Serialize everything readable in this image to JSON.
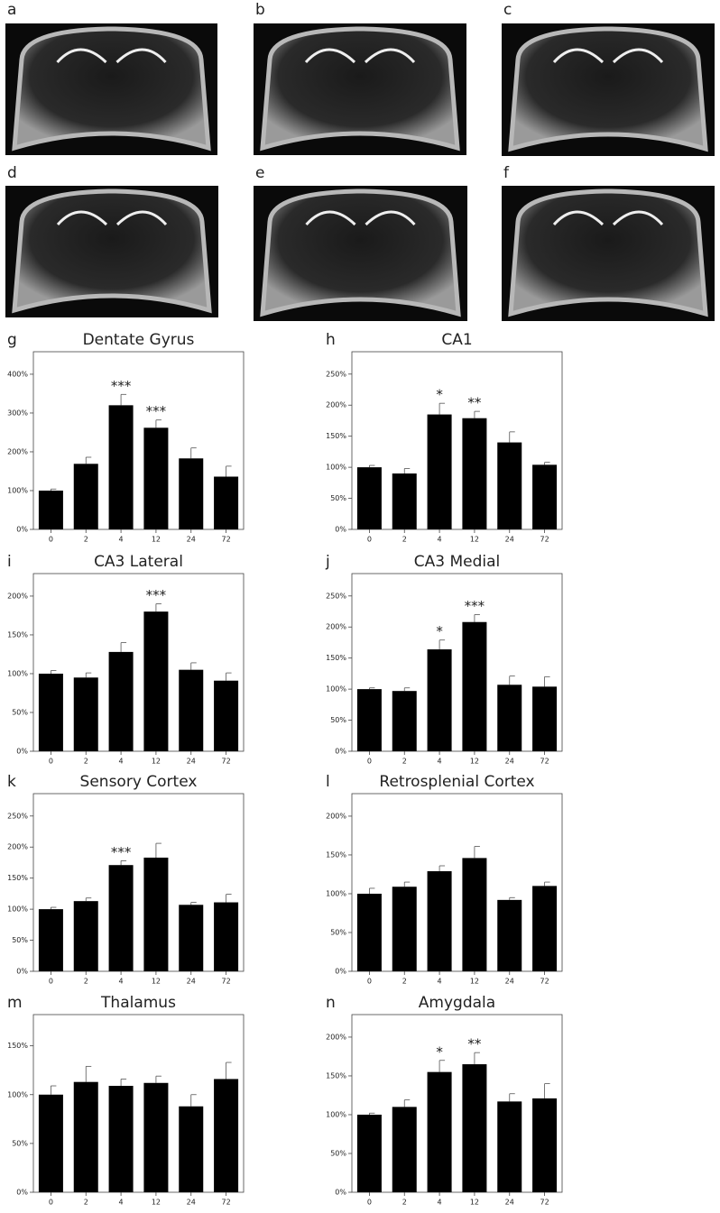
{
  "panels": [
    {
      "label": "a"
    },
    {
      "label": "b"
    },
    {
      "label": "c"
    },
    {
      "label": "d"
    },
    {
      "label": "e"
    },
    {
      "label": "f"
    }
  ],
  "chart_data": [
    {
      "type": "bar",
      "label": "g",
      "title": "Dentate Gyrus",
      "categories": [
        "0",
        "2",
        "4",
        "12",
        "24",
        "72"
      ],
      "values": [
        100,
        169,
        320,
        262,
        183,
        136
      ],
      "errors": [
        4,
        17,
        28,
        20,
        27,
        27
      ],
      "annotations": [
        null,
        null,
        "***",
        "***",
        null,
        null
      ],
      "color": "#000000",
      "ylim": [
        0,
        458
      ],
      "yticks": [
        {
          "value": 0,
          "label": "0%"
        },
        {
          "value": 100,
          "label": "100%"
        },
        {
          "value": 200,
          "label": "200%"
        },
        {
          "value": 300,
          "label": "300%"
        },
        {
          "value": 400,
          "label": "400%"
        }
      ]
    },
    {
      "type": "bar",
      "label": "h",
      "title": "CA1",
      "categories": [
        "0",
        "2",
        "4",
        "12",
        "24",
        "72"
      ],
      "values": [
        100,
        90,
        185,
        179,
        140,
        104
      ],
      "errors": [
        3,
        8,
        18,
        11,
        17,
        4
      ],
      "annotations": [
        null,
        null,
        "*",
        "**",
        null,
        null
      ],
      "color": "#000000",
      "ylim": [
        0,
        286
      ],
      "yticks": [
        {
          "value": 0,
          "label": "0%"
        },
        {
          "value": 50,
          "label": "50%"
        },
        {
          "value": 100,
          "label": "100%"
        },
        {
          "value": 150,
          "label": "150%"
        },
        {
          "value": 200,
          "label": "200%"
        },
        {
          "value": 250,
          "label": "250%"
        }
      ]
    },
    {
      "type": "bar",
      "label": "i",
      "title": "CA3 Lateral",
      "categories": [
        "0",
        "2",
        "4",
        "12",
        "24",
        "72"
      ],
      "values": [
        100,
        95,
        128,
        180,
        105,
        91
      ],
      "errors": [
        4,
        6,
        12,
        10,
        9,
        10
      ],
      "annotations": [
        null,
        null,
        null,
        "***",
        null,
        null
      ],
      "color": "#000000",
      "ylim": [
        0,
        229
      ],
      "yticks": [
        {
          "value": 0,
          "label": "0%"
        },
        {
          "value": 50,
          "label": "50%"
        },
        {
          "value": 100,
          "label": "100%"
        },
        {
          "value": 150,
          "label": "150%"
        },
        {
          "value": 200,
          "label": "200%"
        }
      ]
    },
    {
      "type": "bar",
      "label": "j",
      "title": "CA3 Medial",
      "categories": [
        "0",
        "2",
        "4",
        "12",
        "24",
        "72"
      ],
      "values": [
        100,
        97,
        164,
        208,
        107,
        104
      ],
      "errors": [
        2,
        5,
        15,
        12,
        14,
        16
      ],
      "annotations": [
        null,
        null,
        "*",
        "***",
        null,
        null
      ],
      "color": "#000000",
      "ylim": [
        0,
        286
      ],
      "yticks": [
        {
          "value": 0,
          "label": "0%"
        },
        {
          "value": 50,
          "label": "50%"
        },
        {
          "value": 100,
          "label": "100%"
        },
        {
          "value": 150,
          "label": "150%"
        },
        {
          "value": 200,
          "label": "200%"
        },
        {
          "value": 250,
          "label": "250%"
        }
      ]
    },
    {
      "type": "bar",
      "label": "k",
      "title": "Sensory Cortex",
      "categories": [
        "0",
        "2",
        "4",
        "12",
        "24",
        "72"
      ],
      "values": [
        100,
        113,
        171,
        183,
        107,
        111
      ],
      "errors": [
        3,
        5,
        7,
        23,
        4,
        13
      ],
      "annotations": [
        null,
        null,
        "***",
        null,
        null,
        null
      ],
      "color": "#000000",
      "ylim": [
        0,
        286
      ],
      "yticks": [
        {
          "value": 0,
          "label": "0%"
        },
        {
          "value": 50,
          "label": "50%"
        },
        {
          "value": 100,
          "label": "100%"
        },
        {
          "value": 150,
          "label": "150%"
        },
        {
          "value": 200,
          "label": "200%"
        },
        {
          "value": 250,
          "label": "250%"
        }
      ]
    },
    {
      "type": "bar",
      "label": "l",
      "title": "Retrosplenial Cortex",
      "categories": [
        "0",
        "2",
        "4",
        "12",
        "24",
        "72"
      ],
      "values": [
        100,
        109,
        129,
        146,
        92,
        110
      ],
      "errors": [
        7,
        6,
        7,
        15,
        3,
        5
      ],
      "annotations": [
        null,
        null,
        null,
        null,
        null,
        null
      ],
      "color": "#000000",
      "ylim": [
        0,
        229
      ],
      "yticks": [
        {
          "value": 0,
          "label": "0%"
        },
        {
          "value": 50,
          "label": "50%"
        },
        {
          "value": 100,
          "label": "100%"
        },
        {
          "value": 150,
          "label": "150%"
        },
        {
          "value": 200,
          "label": "200%"
        }
      ]
    },
    {
      "type": "bar",
      "label": "m",
      "title": "Thalamus",
      "categories": [
        "0",
        "2",
        "4",
        "12",
        "24",
        "72"
      ],
      "values": [
        100,
        113,
        109,
        112,
        88,
        116
      ],
      "errors": [
        9,
        16,
        7,
        7,
        12,
        17
      ],
      "annotations": [
        null,
        null,
        null,
        null,
        null,
        null
      ],
      "color": "#000000",
      "ylim": [
        0,
        182
      ],
      "yticks": [
        {
          "value": 0,
          "label": "0%"
        },
        {
          "value": 50,
          "label": "50%"
        },
        {
          "value": 100,
          "label": "100%"
        },
        {
          "value": 150,
          "label": "150%"
        }
      ]
    },
    {
      "type": "bar",
      "label": "n",
      "title": "Amygdala",
      "categories": [
        "0",
        "2",
        "4",
        "12",
        "24",
        "72"
      ],
      "values": [
        100,
        110,
        155,
        165,
        117,
        121
      ],
      "errors": [
        2,
        9,
        15,
        15,
        10,
        19
      ],
      "annotations": [
        null,
        null,
        "*",
        "**",
        null,
        null
      ],
      "color": "#000000",
      "ylim": [
        0,
        229
      ],
      "yticks": [
        {
          "value": 0,
          "label": "0%"
        },
        {
          "value": 50,
          "label": "50%"
        },
        {
          "value": 100,
          "label": "100%"
        },
        {
          "value": 150,
          "label": "150%"
        },
        {
          "value": 200,
          "label": "200%"
        }
      ]
    }
  ]
}
